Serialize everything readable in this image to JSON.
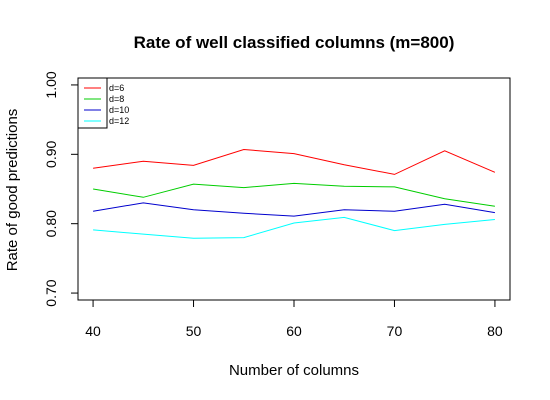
{
  "chart_data": {
    "type": "line",
    "title": "Rate of well classified columns (m=800)",
    "xlabel": "Number of columns",
    "ylabel": "Rate of good predictions",
    "x": [
      40,
      45,
      50,
      55,
      60,
      65,
      70,
      75,
      80
    ],
    "xticks": [
      "40",
      "50",
      "60",
      "70",
      "80"
    ],
    "yticks": [
      "0.70",
      "0.80",
      "0.90",
      "1.00"
    ],
    "xlim": [
      38.5,
      81.5
    ],
    "ylim": [
      0.69,
      1.01
    ],
    "grid": false,
    "legend_position": "top-left",
    "series": [
      {
        "name": "d=6",
        "color": "#ff0000",
        "values": [
          0.88,
          0.89,
          0.884,
          0.907,
          0.901,
          0.885,
          0.871,
          0.905,
          0.874
        ]
      },
      {
        "name": "d=8",
        "color": "#00cd00",
        "values": [
          0.85,
          0.838,
          0.857,
          0.852,
          0.858,
          0.854,
          0.853,
          0.836,
          0.825
        ]
      },
      {
        "name": "d=10",
        "color": "#0000cd",
        "values": [
          0.818,
          0.83,
          0.82,
          0.815,
          0.811,
          0.82,
          0.818,
          0.828,
          0.816
        ]
      },
      {
        "name": "d=12",
        "color": "#00ffff",
        "values": [
          0.791,
          0.785,
          0.779,
          0.78,
          0.801,
          0.809,
          0.79,
          0.799,
          0.806
        ]
      }
    ]
  }
}
